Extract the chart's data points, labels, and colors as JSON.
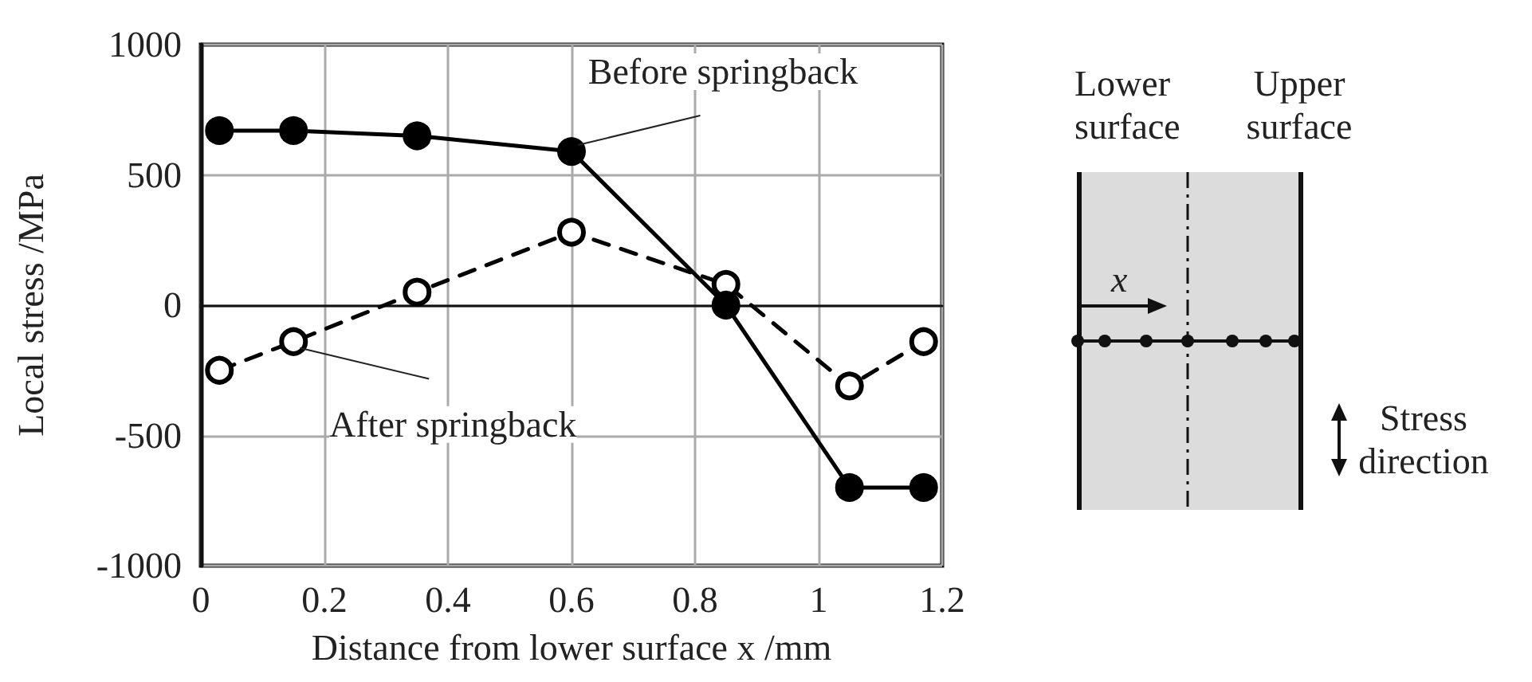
{
  "chart_data": {
    "type": "line",
    "xlabel": "Distance from lower surface x /mm",
    "ylabel": "Local stress /MPa",
    "x": [
      0.03,
      0.15,
      0.35,
      0.6,
      0.85,
      1.05,
      1.17
    ],
    "series": [
      {
        "color": "#000000",
        "line_style": "solid",
        "marker": "circle",
        "values": [
          670,
          670,
          650,
          590,
          0,
          -700,
          -700
        ]
      },
      {
        "color": "#000000",
        "line_style": "dashed",
        "marker": "circle",
        "values": [
          -250,
          -140,
          50,
          280,
          80,
          -310,
          -140
        ]
      }
    ],
    "xlim": [
      0,
      1.2
    ],
    "xticks": [
      0,
      0.2,
      0.4,
      0.6,
      0.8,
      1,
      1.2
    ],
    "ylim": [
      -1000,
      1000
    ],
    "yticks": [
      -1000,
      -500,
      0,
      500,
      1000
    ],
    "grid": true,
    "annotations": [
      {
        "text": "Before springback",
        "x": 0.6,
        "y": 590
      },
      {
        "text": "After springback",
        "x": 0.15,
        "y": -140
      },
      "Lower surface",
      "Upper surface",
      "x",
      "Stress direction"
    ]
  }
}
